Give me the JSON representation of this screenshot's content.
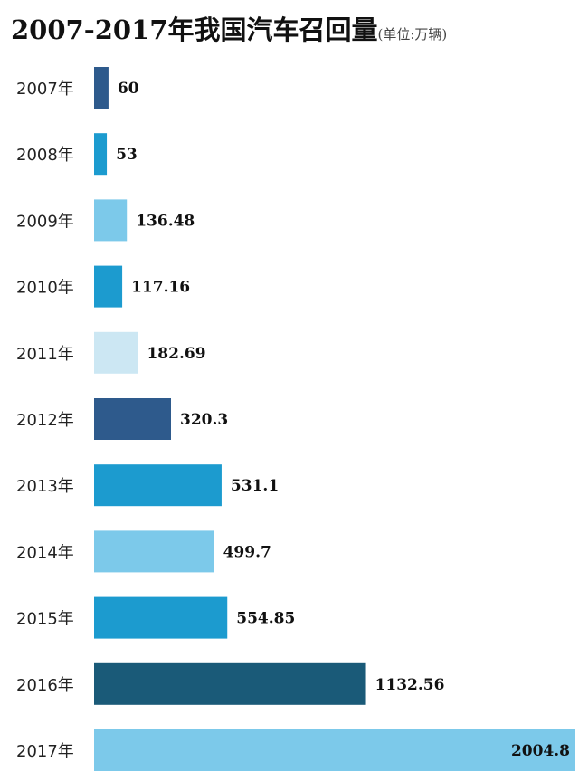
{
  "chart_data": {
    "type": "bar",
    "orientation": "horizontal",
    "title": "2007-2017年我国汽车召回量",
    "unit": "(单位:万辆)",
    "categories": [
      "2007年",
      "2008年",
      "2009年",
      "2010年",
      "2011年",
      "2012年",
      "2013年",
      "2014年",
      "2015年",
      "2016年",
      "2017年"
    ],
    "values": [
      60,
      53,
      136.48,
      117.16,
      182.69,
      320.3,
      531.1,
      499.7,
      554.85,
      1132.56,
      2004.8
    ],
    "value_labels": [
      "60",
      "53",
      "136.48",
      "117.16",
      "182.69",
      "320.3",
      "531.1",
      "499.7",
      "554.85",
      "1132.56",
      "2004.8"
    ],
    "colors": [
      "#2e5a8c",
      "#1c9bcf",
      "#7cc9ea",
      "#1c9bcf",
      "#cce7f3",
      "#2e5a8c",
      "#1c9bcf",
      "#7cc9ea",
      "#1c9bcf",
      "#1a5a78",
      "#7cc9ea"
    ],
    "xlabel": "",
    "ylabel": "",
    "xlim": [
      0,
      2004.8
    ],
    "grid": false,
    "legend": "none"
  }
}
